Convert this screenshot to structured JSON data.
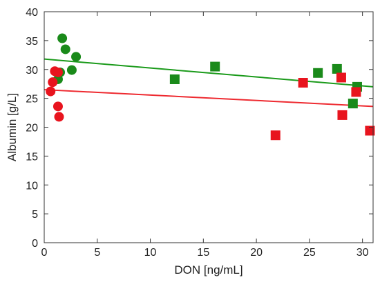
{
  "chart_data": {
    "type": "scatter",
    "xlabel": "DON [ng/mL]",
    "ylabel": "Albumin [g/L]",
    "xlim": [
      0,
      31
    ],
    "ylim": [
      0,
      40
    ],
    "x_ticks": [
      0,
      5,
      10,
      15,
      20,
      25,
      30
    ],
    "y_ticks": [
      0,
      5,
      10,
      15,
      20,
      25,
      30,
      35,
      40
    ],
    "grid": false,
    "legend": "none",
    "series": [
      {
        "color": "#1a8a1a",
        "marker": "circle",
        "points": [
          {
            "x": 1.7,
            "y": 35.4
          },
          {
            "x": 2.0,
            "y": 33.5
          },
          {
            "x": 3.0,
            "y": 32.2
          },
          {
            "x": 2.6,
            "y": 29.9
          },
          {
            "x": 1.5,
            "y": 29.5
          },
          {
            "x": 1.3,
            "y": 28.3
          }
        ]
      },
      {
        "color": "#1a8a1a",
        "marker": "square",
        "points": [
          {
            "x": 12.3,
            "y": 28.3
          },
          {
            "x": 16.1,
            "y": 30.5
          },
          {
            "x": 25.8,
            "y": 29.4
          },
          {
            "x": 27.6,
            "y": 30.1
          },
          {
            "x": 29.1,
            "y": 24.1
          },
          {
            "x": 29.5,
            "y": 27.0
          }
        ]
      },
      {
        "color": "#e8141e",
        "marker": "circle",
        "points": [
          {
            "x": 1.0,
            "y": 29.7
          },
          {
            "x": 1.3,
            "y": 29.5
          },
          {
            "x": 0.8,
            "y": 27.8
          },
          {
            "x": 0.6,
            "y": 26.2
          },
          {
            "x": 1.3,
            "y": 23.6
          },
          {
            "x": 1.4,
            "y": 21.8
          }
        ]
      },
      {
        "color": "#e8141e",
        "marker": "square",
        "points": [
          {
            "x": 21.8,
            "y": 18.6
          },
          {
            "x": 24.4,
            "y": 27.7
          },
          {
            "x": 28.0,
            "y": 28.6
          },
          {
            "x": 28.1,
            "y": 22.1
          },
          {
            "x": 29.4,
            "y": 26.1
          },
          {
            "x": 30.7,
            "y": 19.4
          }
        ]
      }
    ],
    "fit_lines": [
      {
        "color": "#1a9a1a",
        "x": [
          0,
          31
        ],
        "y": [
          31.8,
          27.0
        ]
      },
      {
        "color": "#ee2a30",
        "x": [
          0,
          31
        ],
        "y": [
          26.5,
          23.6
        ]
      }
    ]
  }
}
